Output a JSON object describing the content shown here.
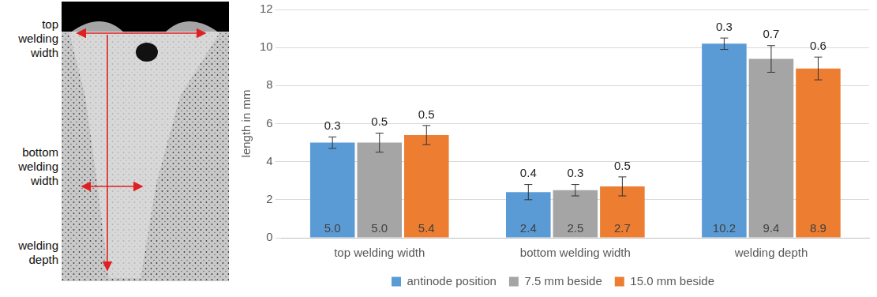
{
  "chart_data": {
    "type": "bar",
    "y_label": "length in mm",
    "categories": [
      "top welding width",
      "bottom welding width",
      "welding depth"
    ],
    "series": [
      {
        "name": "antinode position",
        "color": "#5b9bd5",
        "values": [
          5.0,
          2.4,
          10.2
        ],
        "value_labels": [
          "5.0",
          "2.4",
          "10.2"
        ],
        "errors": [
          0.3,
          0.4,
          0.3
        ]
      },
      {
        "name": "7.5 mm beside",
        "color": "#a5a5a5",
        "values": [
          5.0,
          2.5,
          9.4
        ],
        "value_labels": [
          "5.0",
          "2.5",
          "9.4"
        ],
        "errors": [
          0.5,
          0.3,
          0.7
        ]
      },
      {
        "name": "15.0 mm beside",
        "color": "#ed7d31",
        "values": [
          5.4,
          2.7,
          8.9
        ],
        "value_labels": [
          "5.4",
          "2.7",
          "8.9"
        ],
        "errors": [
          0.5,
          0.5,
          0.6
        ]
      }
    ],
    "ylim": [
      0,
      12
    ],
    "yticks": [
      0,
      2,
      4,
      6,
      8,
      10,
      12
    ],
    "grid": true,
    "legend": "bottom",
    "data_labels": true
  },
  "micrograph": {
    "labels": [
      "top welding width",
      "bottom welding width",
      "welding depth"
    ]
  }
}
